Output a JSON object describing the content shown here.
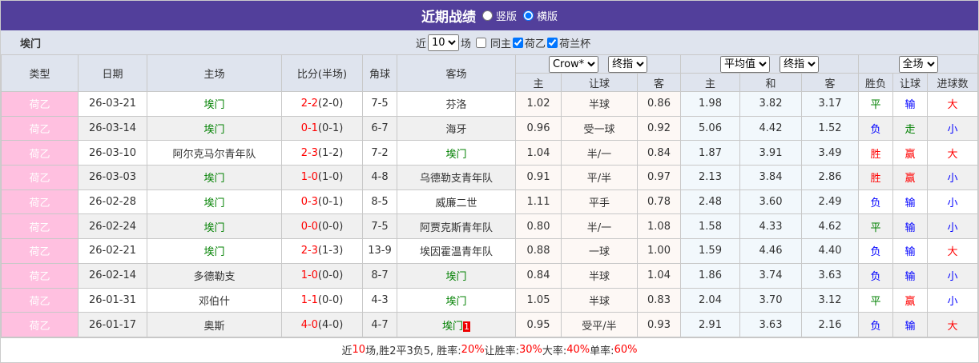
{
  "header": {
    "title": "近期战绩",
    "opt_vertical": "竖版",
    "opt_horizontal": "横版"
  },
  "toolbar": {
    "team": "埃门",
    "near": "近",
    "count": "10",
    "unit": "场",
    "same_home": "同主",
    "league1": "荷乙",
    "league2": "荷兰杯"
  },
  "columns": {
    "type": "类型",
    "date": "日期",
    "home": "主场",
    "score": "比分(半场)",
    "corner": "角球",
    "away": "客场",
    "company": "Crow*",
    "odds_type": "终指",
    "avg": "平均值",
    "avg_type": "终指",
    "scope": "全场",
    "h": "主",
    "hc": "让球",
    "a": "客",
    "ah": "主",
    "ad": "和",
    "aa": "客",
    "res": "胜负",
    "hcres": "让球",
    "goals": "进球数"
  },
  "rows": [
    {
      "type": "荷乙",
      "date": "26-03-21",
      "home": "埃门",
      "home_hl": true,
      "ft": "2-2",
      "ht": "(2-0)",
      "corner": "7-5",
      "away": "芬洛",
      "away_hl": false,
      "h": "1.02",
      "hc": "半球",
      "a": "0.86",
      "ah": "1.98",
      "ad": "3.82",
      "aa": "3.17",
      "res": "平",
      "hcres": "输",
      "goals": "大"
    },
    {
      "type": "荷乙",
      "date": "26-03-14",
      "home": "埃门",
      "home_hl": true,
      "ft": "0-1",
      "ht": "(0-1)",
      "corner": "6-7",
      "away": "海牙",
      "away_hl": false,
      "h": "0.96",
      "hc": "受一球",
      "a": "0.92",
      "ah": "5.06",
      "ad": "4.42",
      "aa": "1.52",
      "res": "负",
      "hcres": "走",
      "goals": "小"
    },
    {
      "type": "荷乙",
      "date": "26-03-10",
      "home": "阿尔克马尔青年队",
      "home_hl": false,
      "ft": "2-3",
      "ht": "(1-2)",
      "corner": "7-2",
      "away": "埃门",
      "away_hl": true,
      "h": "1.04",
      "hc": "半/一",
      "a": "0.84",
      "ah": "1.87",
      "ad": "3.91",
      "aa": "3.49",
      "res": "胜",
      "hcres": "赢",
      "goals": "大"
    },
    {
      "type": "荷乙",
      "date": "26-03-03",
      "home": "埃门",
      "home_hl": true,
      "ft": "1-0",
      "ht": "(1-0)",
      "corner": "4-8",
      "away": "乌德勒支青年队",
      "away_hl": false,
      "h": "0.91",
      "hc": "平/半",
      "a": "0.97",
      "ah": "2.13",
      "ad": "3.84",
      "aa": "2.86",
      "res": "胜",
      "hcres": "赢",
      "goals": "小"
    },
    {
      "type": "荷乙",
      "date": "26-02-28",
      "home": "埃门",
      "home_hl": true,
      "ft": "0-3",
      "ht": "(0-1)",
      "corner": "8-5",
      "away": "威廉二世",
      "away_hl": false,
      "h": "1.11",
      "hc": "平手",
      "a": "0.78",
      "ah": "2.48",
      "ad": "3.60",
      "aa": "2.49",
      "res": "负",
      "hcres": "输",
      "goals": "小"
    },
    {
      "type": "荷乙",
      "date": "26-02-24",
      "home": "埃门",
      "home_hl": true,
      "ft": "0-0",
      "ht": "(0-0)",
      "corner": "7-5",
      "away": "阿贾克斯青年队",
      "away_hl": false,
      "h": "0.80",
      "hc": "半/一",
      "a": "1.08",
      "ah": "1.58",
      "ad": "4.33",
      "aa": "4.62",
      "res": "平",
      "hcres": "输",
      "goals": "小"
    },
    {
      "type": "荷乙",
      "date": "26-02-21",
      "home": "埃门",
      "home_hl": true,
      "ft": "2-3",
      "ht": "(1-3)",
      "corner": "13-9",
      "away": "埃因霍温青年队",
      "away_hl": false,
      "h": "0.88",
      "hc": "一球",
      "a": "1.00",
      "ah": "1.59",
      "ad": "4.46",
      "aa": "4.40",
      "res": "负",
      "hcres": "输",
      "goals": "大"
    },
    {
      "type": "荷乙",
      "date": "26-02-14",
      "home": "多德勒支",
      "home_hl": false,
      "ft": "1-0",
      "ht": "(0-0)",
      "corner": "8-7",
      "away": "埃门",
      "away_hl": true,
      "h": "0.84",
      "hc": "半球",
      "a": "1.04",
      "ah": "1.86",
      "ad": "3.74",
      "aa": "3.63",
      "res": "负",
      "hcres": "输",
      "goals": "小"
    },
    {
      "type": "荷乙",
      "date": "26-01-31",
      "home": "邓伯什",
      "home_hl": false,
      "ft": "1-1",
      "ht": "(0-0)",
      "corner": "4-3",
      "away": "埃门",
      "away_hl": true,
      "h": "1.05",
      "hc": "半球",
      "a": "0.83",
      "ah": "2.04",
      "ad": "3.70",
      "aa": "3.12",
      "res": "平",
      "hcres": "赢",
      "goals": "小"
    },
    {
      "type": "荷乙",
      "date": "26-01-17",
      "home": "奥斯",
      "home_hl": false,
      "ft": "4-0",
      "ht": "(4-0)",
      "corner": "4-7",
      "away": "埃门",
      "away_hl": true,
      "away_red": "1",
      "h": "0.95",
      "hc": "受平/半",
      "a": "0.93",
      "ah": "2.91",
      "ad": "3.63",
      "aa": "2.16",
      "res": "负",
      "hcres": "输",
      "goals": "大"
    }
  ],
  "footer": {
    "p1": "近",
    "n": "10",
    "p2": "场,胜2平3负5, 胜率:",
    "win": "20%",
    "p3": " 让胜率:",
    "hcwin": "30%",
    "p4": " 大率:",
    "big": "40%",
    "p5": " 单率:",
    "odd": "60%"
  },
  "colors": {
    "title_bg": "#523f9b",
    "header_bg": "#dfe4ee",
    "type_bg": "#ffc0e0",
    "win": "#ff0000",
    "draw": "#008000",
    "loss": "#0000ff"
  }
}
